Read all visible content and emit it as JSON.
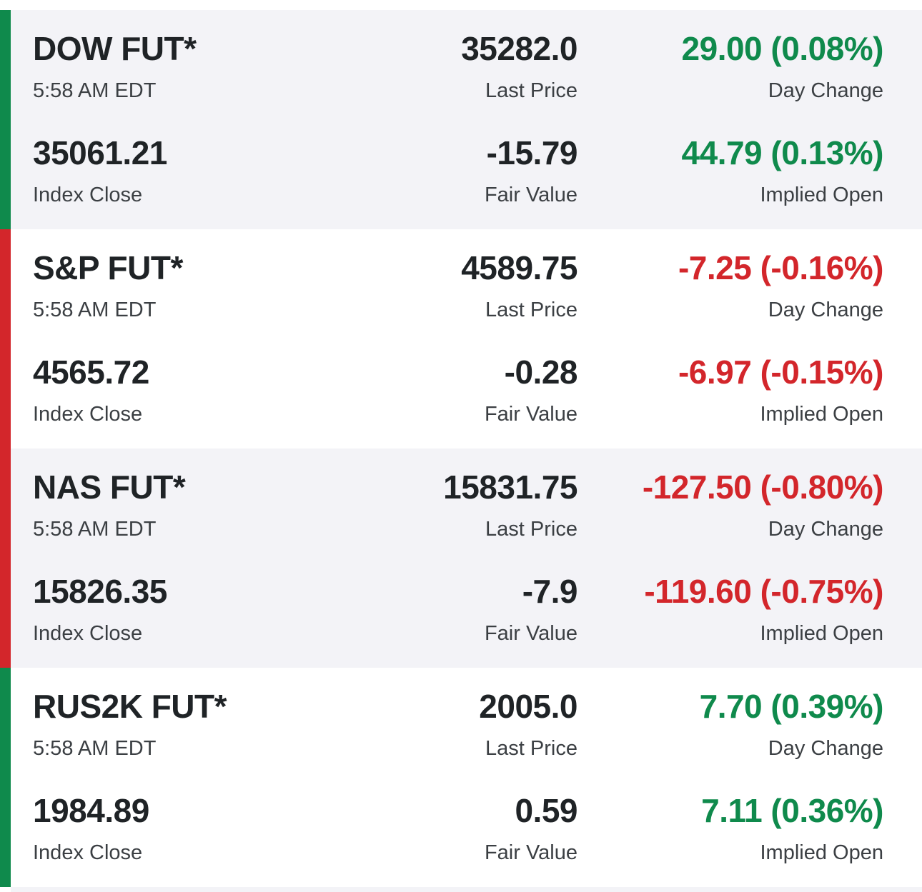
{
  "colors": {
    "positive": "#0f8a4c",
    "negative": "#d3262b",
    "shaded_row": "#f3f3f7",
    "text": "#1f2326"
  },
  "labels": {
    "last_price": "Last Price",
    "day_change": "Day Change",
    "index_close": "Index Close",
    "fair_value": "Fair Value",
    "implied_open": "Implied Open"
  },
  "futures": [
    {
      "name": "DOW FUT*",
      "time": "5:58 AM EDT",
      "last_price": "35282.0",
      "day_change": "29.00 (0.08%)",
      "index_close": "35061.21",
      "fair_value": "-15.79",
      "implied_open": "44.79 (0.13%)",
      "direction": "up"
    },
    {
      "name": "S&P FUT*",
      "time": "5:58 AM EDT",
      "last_price": "4589.75",
      "day_change": "-7.25 (-0.16%)",
      "index_close": "4565.72",
      "fair_value": "-0.28",
      "implied_open": "-6.97 (-0.15%)",
      "direction": "down"
    },
    {
      "name": "NAS FUT*",
      "time": "5:58 AM EDT",
      "last_price": "15831.75",
      "day_change": "-127.50 (-0.80%)",
      "index_close": "15826.35",
      "fair_value": "-7.9",
      "implied_open": "-119.60 (-0.75%)",
      "direction": "down"
    },
    {
      "name": "RUS2K FUT*",
      "time": "5:58 AM EDT",
      "last_price": "2005.0",
      "day_change": "7.70 (0.39%)",
      "index_close": "1984.89",
      "fair_value": "0.59",
      "implied_open": "7.11 (0.36%)",
      "direction": "up"
    }
  ]
}
